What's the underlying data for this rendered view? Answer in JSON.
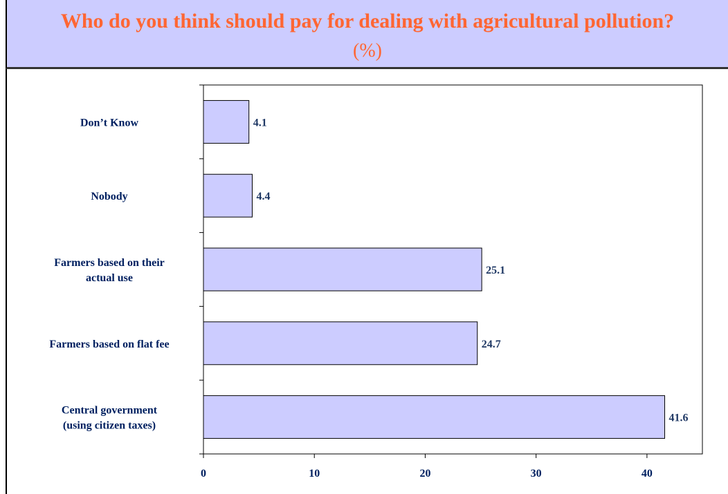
{
  "chart_data": {
    "type": "bar",
    "orientation": "horizontal",
    "title": "Who do you think should pay for dealing with agricultural pollution?",
    "subtitle": "(%)",
    "categories": [
      [
        "Don’t Know"
      ],
      [
        "Nobody"
      ],
      [
        "Farmers based on their",
        "actual use"
      ],
      [
        "Farmers based on flat fee"
      ],
      [
        "Central government",
        "(using citizen taxes)"
      ]
    ],
    "values": [
      4.1,
      4.4,
      25.1,
      24.7,
      41.6
    ],
    "value_labels": [
      "4.1",
      "4.4",
      "25.1",
      "24.7",
      "41.6"
    ],
    "xlim": [
      0,
      45
    ],
    "xticks": [
      0,
      10,
      20,
      30,
      40
    ],
    "grid": false,
    "legend": "none",
    "colors": {
      "bar_fill": "#ccccff",
      "bar_stroke": "#000000",
      "title": "#ff6633",
      "labels": "#002060",
      "title_bg": "#ccccff"
    }
  }
}
